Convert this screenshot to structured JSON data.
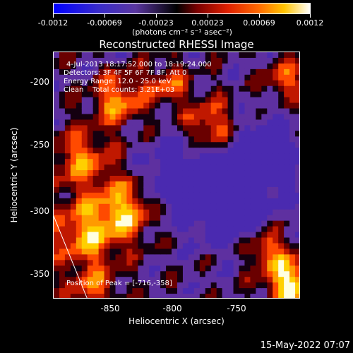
{
  "colorbar": {
    "tick_labels": [
      "-0.0012",
      "-0.00069",
      "-0.00023",
      "0.00023",
      "0.00069",
      "0.0012"
    ],
    "units": "(photons cm⁻² s⁻¹ asec⁻²)"
  },
  "image": {
    "title": "Reconstructed RHESSI Image",
    "info_lines": [
      "4-Jul-2013 18:17:52.000 to 18:19:24.000",
      "Detectors: 3F 4F 5F 6F 7F 8F, Att 0",
      "Energy Range: 12.0 - 25.0 keV",
      "Clean    Total counts: 3.21E+03"
    ],
    "peak_text": "Position of Peak = [-716,-358]",
    "y_ticks": [
      "-200",
      "-250",
      "-300",
      "-350"
    ],
    "x_ticks": [
      "-850",
      "-800",
      "-750"
    ],
    "ylabel": "Heliocentric Y (arcsec)",
    "xlabel": "Heliocentric X (arcsec)",
    "colors": {
      "low": "#0000ff",
      "mid": "#000000",
      "high": "#ffffff"
    }
  },
  "footer": {
    "timestamp": "15-May-2022 07:07"
  }
}
